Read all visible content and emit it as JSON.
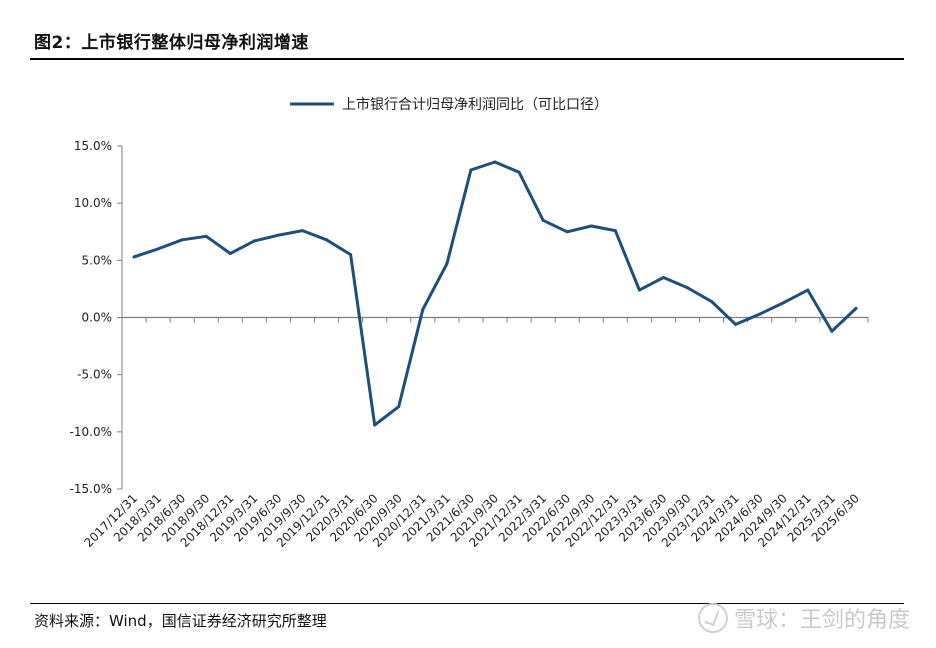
{
  "header": {
    "title": "图2：上市银行整体归母净利润增速"
  },
  "footer": {
    "source": "资料来源：Wind，国信证券经济研究所整理",
    "watermark": "雪球：王剑的角度"
  },
  "chart_data": {
    "type": "line",
    "legend": "top-center",
    "grid": false,
    "ylim": [
      -15,
      15
    ],
    "yticks": [
      "-15.0%",
      "-10.0%",
      "-5.0%",
      "0.0%",
      "5.0%",
      "10.0%",
      "15.0%"
    ],
    "categories": [
      "2017/12/31",
      "2018/3/31",
      "2018/6/30",
      "2018/9/30",
      "2018/12/31",
      "2019/3/31",
      "2019/6/30",
      "2019/9/30",
      "2019/12/31",
      "2020/3/31",
      "2020/6/30",
      "2020/9/30",
      "2020/12/31",
      "2021/3/31",
      "2021/6/30",
      "2021/9/30",
      "2021/12/31",
      "2022/3/31",
      "2022/6/30",
      "2022/9/30",
      "2022/12/31",
      "2023/3/31",
      "2023/6/30",
      "2023/9/30",
      "2023/12/31",
      "2024/3/31",
      "2024/6/30",
      "2024/9/30",
      "2024/12/31",
      "2025/3/31",
      "2025/6/30"
    ],
    "series": [
      {
        "name": "上市银行合计归母净利润同比（可比口径）",
        "color": "#1f4e79",
        "values": [
          5.3,
          6.0,
          6.8,
          7.1,
          5.6,
          6.7,
          7.2,
          7.6,
          6.8,
          5.5,
          -9.4,
          -7.8,
          0.7,
          4.7,
          12.9,
          13.6,
          12.7,
          8.5,
          7.5,
          8.0,
          7.6,
          2.4,
          3.5,
          2.6,
          1.4,
          -0.6,
          0.3,
          1.3,
          2.4,
          -1.2,
          0.8
        ]
      }
    ]
  }
}
